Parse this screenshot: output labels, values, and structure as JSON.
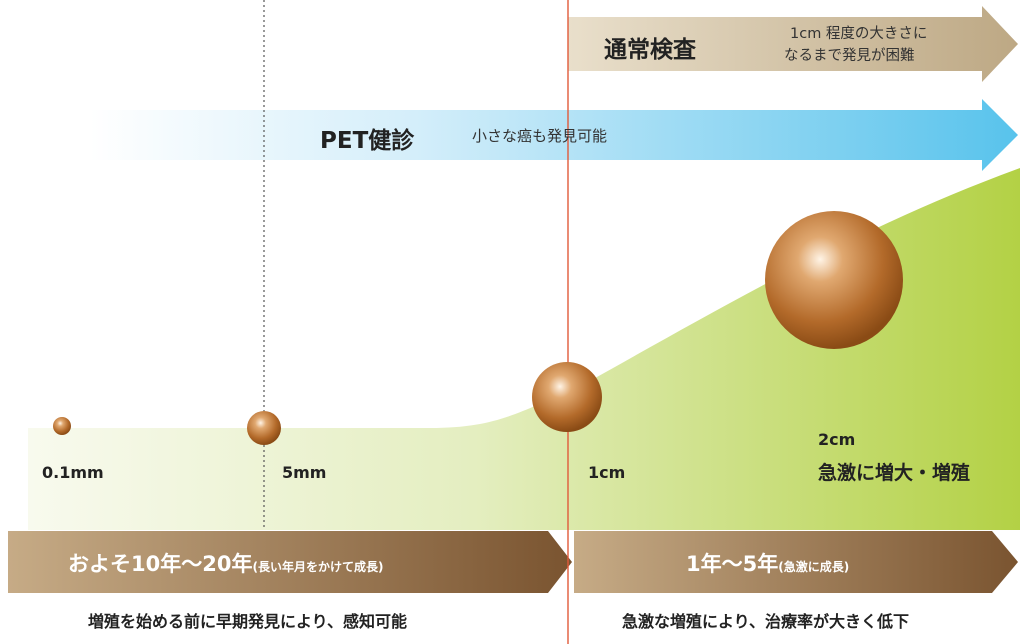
{
  "normal_exam": {
    "title": "通常検査",
    "note_line1": "1cm 程度の大きさに",
    "note_line2": "なるまで発見が困難"
  },
  "pet_exam": {
    "title": "PET健診",
    "note": "小さな癌も発見可能"
  },
  "sizes": {
    "s1": "0.1mm",
    "s2": "5mm",
    "s3": "1cm",
    "s4": "2cm",
    "s4_note": "急激に増大・増殖"
  },
  "timeline": {
    "left_main": "およそ10年～20年",
    "left_sub": "(長い年月をかけて成長)",
    "right_main": "1年～5年",
    "right_sub": "(急激に成長)"
  },
  "bottom_notes": {
    "left": "増殖を始める前に早期発見により、感知可能",
    "right": "急激な増殖により、治療率が大きく低下"
  },
  "colors": {
    "normal_arrow": "#c9b795",
    "pet_arrow_start": "#ffffff",
    "pet_arrow_end": "#58c3ec",
    "growth_area": "#b8d44a",
    "sphere": "#b06a28",
    "timeline_left": "#7a5633",
    "timeline_right": "#7a5633",
    "marker_line": "#e05a3a"
  }
}
